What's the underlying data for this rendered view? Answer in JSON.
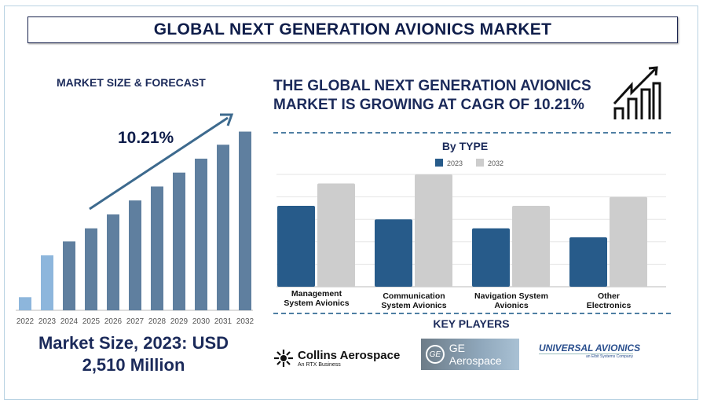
{
  "title": "GLOBAL NEXT GENERATION AVIONICS MARKET",
  "left_panel": {
    "heading": "MARKET SIZE & FORECAST",
    "cagr_label": "10.21%",
    "market_size_line1": "Market Size, 2023: USD",
    "market_size_line2": "2,510 Million"
  },
  "headline": "THE GLOBAL NEXT GENERATION AVIONICS MARKET IS GROWING AT CAGR OF 10.21%",
  "key_players": {
    "heading": "KEY PLAYERS",
    "logos": [
      {
        "name": "Collins Aerospace",
        "sub": "An RTX Business"
      },
      {
        "name": "GE Aerospace",
        "sub": ""
      },
      {
        "name": "UNIVERSAL AVIONICS",
        "sub": "an Elbit Systems Company"
      }
    ]
  },
  "colors": {
    "navy": "#1b2a5a",
    "bar_dark": "#5f7f9f",
    "bar_light": "#8db6dc",
    "s2023": "#275b8a",
    "s2032": "#cdcdcd"
  },
  "chart_data": [
    {
      "type": "bar",
      "title": "Market Size & Forecast",
      "categories": [
        "2022",
        "2023",
        "2024",
        "2025",
        "2026",
        "2027",
        "2028",
        "2029",
        "2030",
        "2031",
        "2032"
      ],
      "values": [
        16,
        67,
        84,
        100,
        117,
        134,
        151,
        168,
        185,
        202,
        218
      ],
      "highlight": [
        "2022",
        "2023"
      ],
      "xlabel": "",
      "ylabel": "",
      "ylim": [
        0,
        230
      ],
      "grid": false
    },
    {
      "type": "bar",
      "title": "By TYPE",
      "categories": [
        "Management System Avionics",
        "Communication System Avionics",
        "Navigation System Avionics",
        "Other Electronics"
      ],
      "series": [
        {
          "name": "2023",
          "values": [
            3.6,
            3.0,
            2.6,
            2.2
          ]
        },
        {
          "name": "2032",
          "values": [
            4.6,
            5.0,
            3.6,
            4.0
          ]
        }
      ],
      "ylim": [
        0,
        5
      ],
      "grid": true,
      "legend": "top-center"
    }
  ]
}
